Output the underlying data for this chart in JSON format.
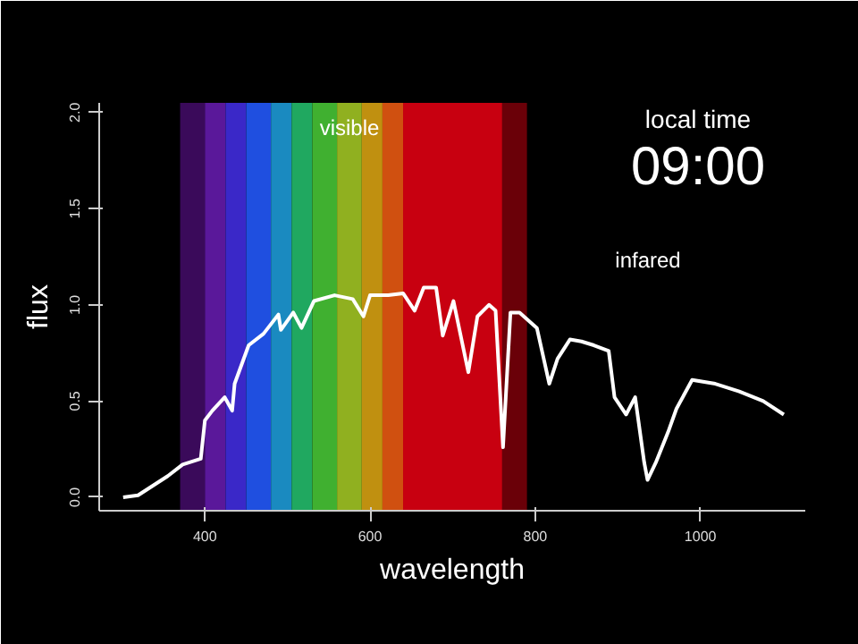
{
  "chart_data": {
    "type": "line",
    "xlabel": "wavelength",
    "ylabel": "flux",
    "xlim": [
      272,
      1127
    ],
    "ylim": [
      -0.07,
      2.05
    ],
    "xticks": [
      400,
      600,
      800,
      1000
    ],
    "yticks": [
      {
        "value": 0,
        "label": "0.0"
      },
      {
        "value": 0.5,
        "label": "0.5"
      },
      {
        "value": 1,
        "label": "1.0"
      },
      {
        "value": 1.5,
        "label": "1.5"
      },
      {
        "value": 2,
        "label": "2.0"
      }
    ],
    "grid": false,
    "marker": "none",
    "line_style": "solid",
    "series": [
      {
        "color": "#ffffff",
        "x": [
          301,
          319,
          355,
          373,
          395,
          400,
          409,
          424,
          433,
          436,
          453,
          471,
          489,
          492,
          507,
          517,
          532,
          557,
          579,
          592,
          600,
          622,
          640,
          654,
          665,
          680,
          688,
          701,
          719,
          730,
          744,
          752,
          761,
          770,
          781,
          802,
          817,
          827,
          842,
          856,
          871,
          889,
          896,
          910,
          921,
          932,
          936,
          946,
          961,
          971,
          990,
          1018,
          1047,
          1076,
          1101
        ],
        "values": [
          0.0,
          0.01,
          0.11,
          0.17,
          0.2,
          0.4,
          0.45,
          0.52,
          0.45,
          0.59,
          0.79,
          0.85,
          0.95,
          0.87,
          0.96,
          0.88,
          1.02,
          1.05,
          1.03,
          0.94,
          1.05,
          1.05,
          1.06,
          0.97,
          1.09,
          1.09,
          0.84,
          1.02,
          0.65,
          0.94,
          1.0,
          0.97,
          0.26,
          0.96,
          0.96,
          0.88,
          0.59,
          0.72,
          0.82,
          0.81,
          0.79,
          0.76,
          0.52,
          0.43,
          0.52,
          0.18,
          0.09,
          0.18,
          0.34,
          0.46,
          0.61,
          0.59,
          0.55,
          0.5,
          0.43
        ]
      }
    ],
    "bands": [
      {
        "axis": "x",
        "from": 370,
        "to": 400,
        "color": "#3a0a5a"
      },
      {
        "axis": "x",
        "from": 400,
        "to": 425,
        "color": "#5a189a"
      },
      {
        "axis": "x",
        "from": 425,
        "to": 450,
        "color": "#3a28c8"
      },
      {
        "axis": "x",
        "from": 450,
        "to": 480,
        "color": "#1f4fe0"
      },
      {
        "axis": "x",
        "from": 480,
        "to": 505,
        "color": "#1a8ac0"
      },
      {
        "axis": "x",
        "from": 505,
        "to": 530,
        "color": "#20a860"
      },
      {
        "axis": "x",
        "from": 530,
        "to": 560,
        "color": "#40b030"
      },
      {
        "axis": "x",
        "from": 560,
        "to": 590,
        "color": "#90b020"
      },
      {
        "axis": "x",
        "from": 590,
        "to": 615,
        "color": "#c09010"
      },
      {
        "axis": "x",
        "from": 615,
        "to": 640,
        "color": "#d05010"
      },
      {
        "axis": "x",
        "from": 640,
        "to": 760,
        "color": "#c80010"
      },
      {
        "axis": "x",
        "from": 760,
        "to": 790,
        "color": "#6a0008"
      }
    ],
    "annotations": [
      "visible",
      "infared",
      "local time",
      "09:00"
    ]
  }
}
